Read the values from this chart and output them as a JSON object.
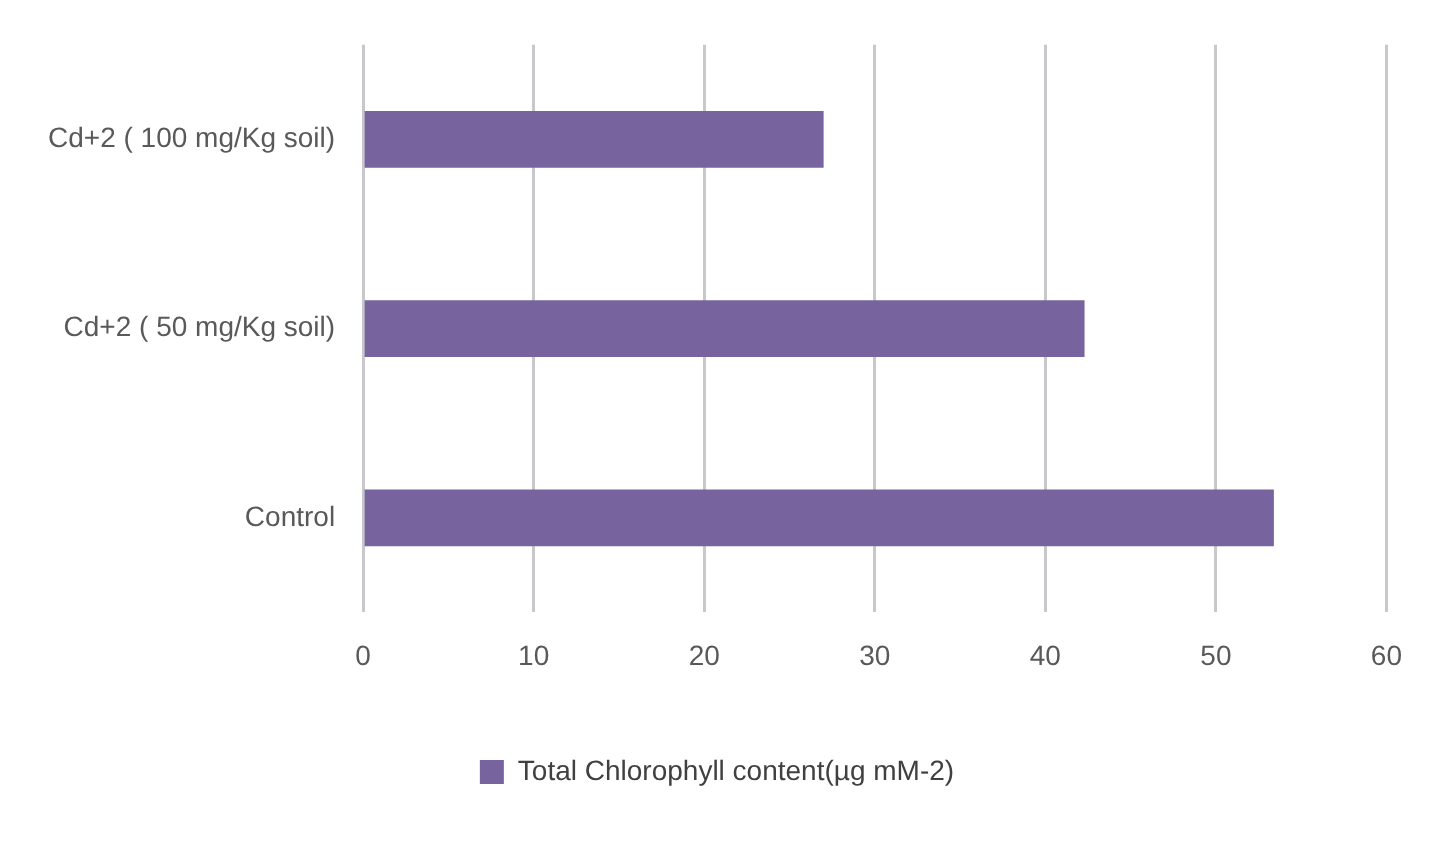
{
  "chart_data": {
    "type": "bar",
    "orientation": "horizontal",
    "categories": [
      "Cd+2 ( 100 mg/Kg soil)",
      "Cd+2 ( 50 mg/Kg soil)",
      "Control"
    ],
    "series": [
      {
        "name": "Total Chlorophyll content(µg mM-2)",
        "color": "#77649e",
        "values": [
          27,
          42.3,
          53.4
        ]
      }
    ],
    "xlim": [
      0,
      60
    ],
    "xticks": [
      0,
      10,
      20,
      30,
      40,
      50,
      60
    ],
    "grid": "x",
    "legend": "bottom"
  }
}
